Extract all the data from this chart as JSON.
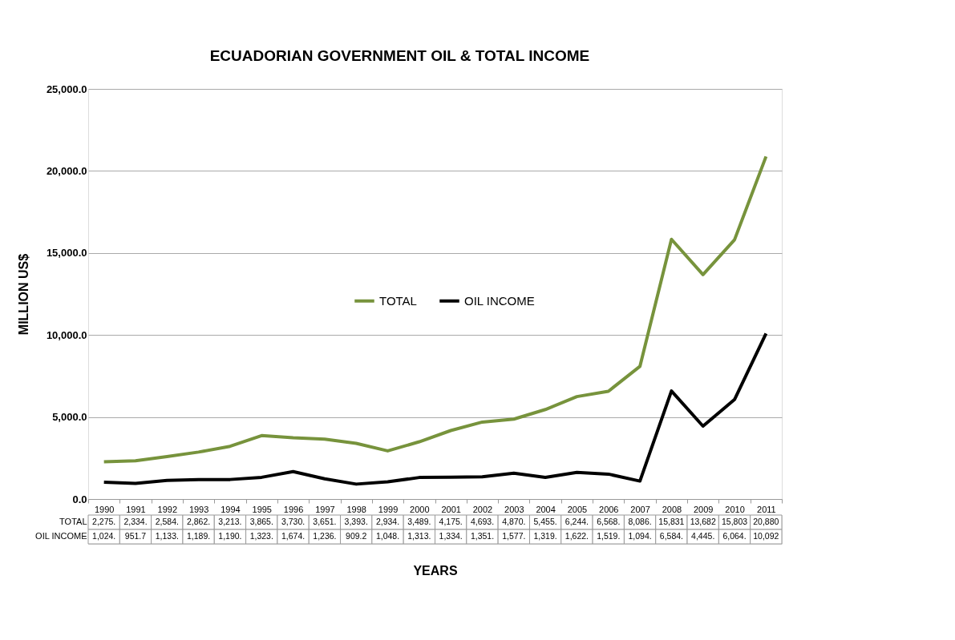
{
  "chart_data": {
    "type": "line",
    "title": "ECUADORIAN GOVERNMENT OIL & TOTAL INCOME",
    "xlabel": "YEARS",
    "ylabel": "MILLION US$",
    "categories": [
      "1990",
      "1991",
      "1992",
      "1993",
      "1994",
      "1995",
      "1996",
      "1997",
      "1998",
      "1999",
      "2000",
      "2001",
      "2002",
      "2003",
      "2004",
      "2005",
      "2006",
      "2007",
      "2008",
      "2009",
      "2010",
      "2011"
    ],
    "series": [
      {
        "name": "TOTAL",
        "color": "#77933c",
        "values": [
          2275,
          2334,
          2584,
          2862,
          3213,
          3865,
          3730,
          3651,
          3393,
          2934,
          3489,
          4175,
          4693,
          4870,
          5455,
          6244,
          6568,
          8086,
          15831,
          13682,
          15803,
          20880
        ],
        "value_labels": [
          "2,275.",
          "2,334.",
          "2,584.",
          "2,862.",
          "3,213.",
          "3,865.",
          "3,730.",
          "3,651.",
          "3,393.",
          "2,934.",
          "3,489.",
          "4,175.",
          "4,693.",
          "4,870.",
          "5,455.",
          "6,244.",
          "6,568.",
          "8,086.",
          "15,831",
          "13,682",
          "15,803",
          "20,880"
        ]
      },
      {
        "name": "OIL INCOME",
        "color": "#000000",
        "values": [
          1024,
          951.7,
          1133,
          1189,
          1190,
          1323,
          1674,
          1236,
          909.2,
          1048,
          1313,
          1334,
          1351,
          1577,
          1319,
          1622,
          1519,
          1094,
          6584,
          4445,
          6064,
          10092
        ],
        "value_labels": [
          "1,024.",
          "951.7",
          "1,133.",
          "1,189.",
          "1,190.",
          "1,323.",
          "1,674.",
          "1,236.",
          "909.2",
          "1,048.",
          "1,313.",
          "1,334.",
          "1,351.",
          "1,577.",
          "1,319.",
          "1,622.",
          "1,519.",
          "1,094.",
          "6,584.",
          "4,445.",
          "6,064.",
          "10,092"
        ]
      }
    ],
    "ylim": [
      0,
      25000
    ],
    "yticks": [
      {
        "value": 0,
        "label": "0.0"
      },
      {
        "value": 5000,
        "label": "5,000.0"
      },
      {
        "value": 10000,
        "label": "10,000.0"
      },
      {
        "value": 15000,
        "label": "15,000.0"
      },
      {
        "value": 20000,
        "label": "20,000.0"
      },
      {
        "value": 25000,
        "label": "25,000.0"
      }
    ],
    "grid": "y",
    "legend": "center",
    "marker": "none",
    "line_style": "solid"
  }
}
